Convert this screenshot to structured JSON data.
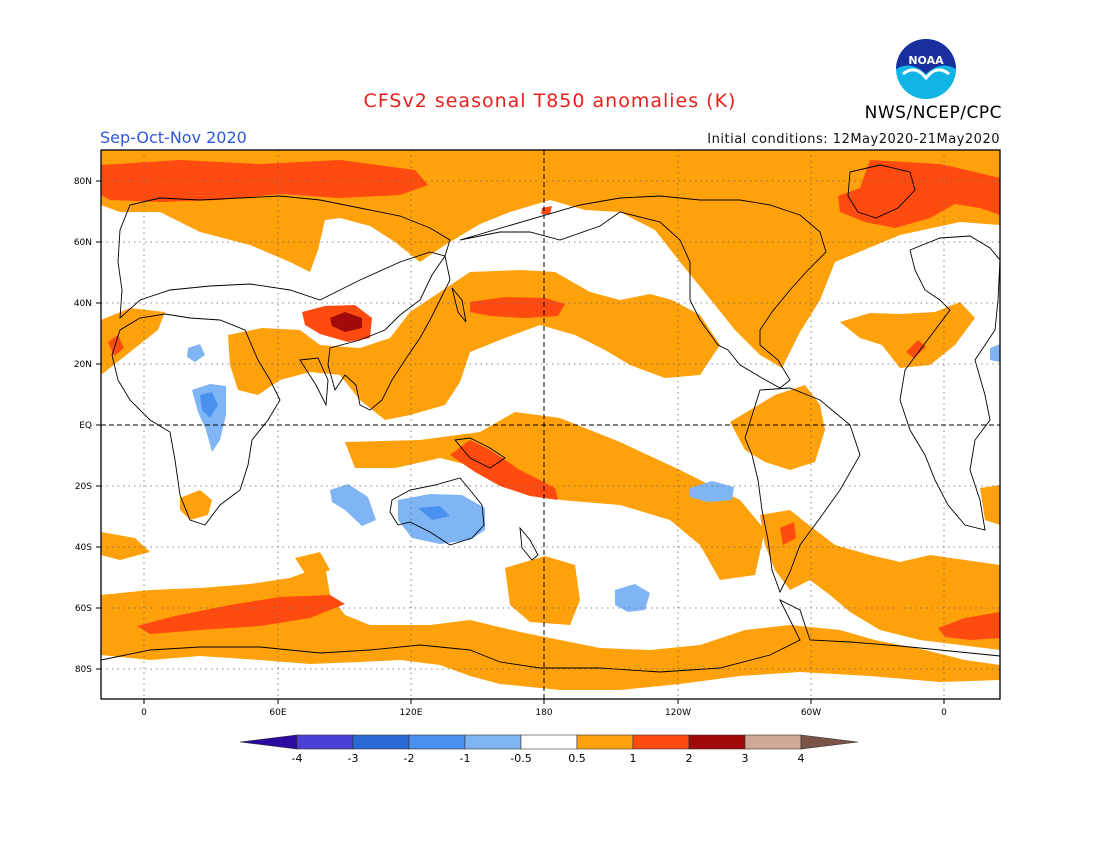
{
  "header": {
    "title": "CFSv2 seasonal T850 anomalies (K)",
    "agency": "NWS/NCEP/CPC",
    "season": "Sep-Oct-Nov 2020",
    "initial_conditions": "Initial conditions: 12May2020-21May2020",
    "logo_text": "NOAA"
  },
  "map": {
    "lat_labels": [
      "80N",
      "60N",
      "40N",
      "20N",
      "EQ",
      "20S",
      "40S",
      "60S",
      "80S"
    ],
    "lon_labels": [
      "0",
      "60E",
      "120E",
      "180",
      "120W",
      "60W",
      "0"
    ]
  },
  "colorbar": {
    "labels": [
      "-4",
      "-3",
      "-2",
      "-1",
      "-0.5",
      "0.5",
      "1",
      "2",
      "3",
      "4"
    ],
    "colors": [
      "#2a0aa0",
      "#4a40d6",
      "#2a6ad6",
      "#4a90ee",
      "#7fb5f4",
      "#ffffff",
      "#ffa10a",
      "#ff4a10",
      "#a00a0a",
      "#d0a896",
      "#7a5446"
    ]
  }
}
